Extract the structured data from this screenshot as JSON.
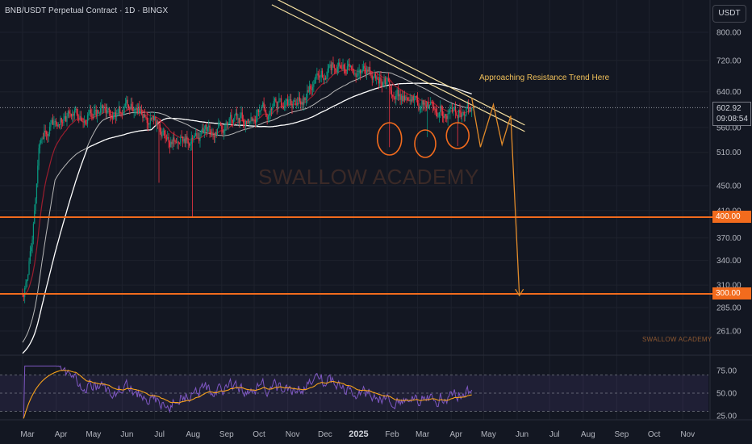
{
  "header": {
    "title": "BNB/USDT Perpetual Contract · 1D · BINGX",
    "currency_button": "USDT"
  },
  "price_panel": {
    "current_price": "602.92",
    "countdown": "09:08:54",
    "level_400_label": "400.00",
    "level_300_label": "300.00"
  },
  "annotations": {
    "resistance_text": "Approaching Resistance Trend Here",
    "watermark_main": "SWALLOW ACADEMY",
    "watermark_small": "SWALLOW ACADEMY"
  },
  "colors": {
    "background": "#131722",
    "grid": "#1e222d",
    "candle_up": "#089981",
    "candle_down": "#f23645",
    "ema_fast": "#9b1d2e",
    "sma_mid": "#b8b8b8",
    "sma_slow": "#ffffff",
    "trendline": "#f5e0a0",
    "horizontal_levels": "#f26b1d",
    "projection": "#e08a2a",
    "rsi_line": "#7e57c2",
    "rsi_ma": "#f7a21b"
  },
  "chart_data": [
    {
      "type": "candlestick",
      "title": "BNB/USDT Perpetual Contract · 1D · BINGX",
      "y_scale": "log",
      "ylim": [
        232,
        835
      ],
      "y_ticks": [
        800,
        720,
        640,
        602.92,
        560,
        510,
        450,
        410,
        400,
        370,
        340,
        310,
        300,
        285,
        261
      ],
      "y_tick_labels": [
        "800.00",
        "720.00",
        "640.00",
        "602.92",
        "560.00",
        "510.00",
        "450.00",
        "410.00",
        "400.00",
        "370.00",
        "340.00",
        "310.00",
        "300.00",
        "285.00",
        "261.00"
      ],
      "x_ticks": [
        "Mar",
        "Apr",
        "May",
        "Jun",
        "Jul",
        "Aug",
        "Sep",
        "Oct",
        "Nov",
        "Dec",
        "2025",
        "Feb",
        "Mar",
        "Apr",
        "May",
        "Jun",
        "Jul",
        "Aug",
        "Sep",
        "Oct",
        "Nov"
      ],
      "price_path_monthly": {
        "x": [
          "2024-03",
          "2024-04",
          "2024-05",
          "2024-06",
          "2024-07",
          "2024-08",
          "2024-09",
          "2024-10",
          "2024-11",
          "2024-12",
          "2025-01",
          "2025-02",
          "2025-03",
          "2025-04"
        ],
        "close": [
          555,
          590,
          595,
          600,
          530,
          555,
          575,
          600,
          630,
          720,
          690,
          620,
          600,
          600
        ]
      },
      "current_price": 602.92,
      "horizontal_levels": [
        400,
        300
      ],
      "trendline": {
        "from": {
          "x": "2024-12-01",
          "y": 810
        },
        "to": {
          "x": "2025-06-08",
          "y": 565
        }
      },
      "projection_path": [
        {
          "x": "2025-04-20",
          "y": 625
        },
        {
          "x": "2025-04-28",
          "y": 520
        },
        {
          "x": "2025-05-10",
          "y": 610
        },
        {
          "x": "2025-05-18",
          "y": 525
        },
        {
          "x": "2025-05-26",
          "y": 585
        },
        {
          "x": "2025-06-03",
          "y": 298
        }
      ],
      "marked_lows": [
        "2025-02-03",
        "2025-03-08",
        "2025-04-07"
      ],
      "annotation": "Approaching Resistance Trend Here"
    },
    {
      "type": "line",
      "name": "RSI panel",
      "ylim": [
        20,
        80
      ],
      "y_ticks": [
        75,
        50,
        25
      ],
      "y_tick_labels": [
        "75.00",
        "50.00",
        "25.00"
      ],
      "bands": [
        30,
        70
      ],
      "last_value": 52
    }
  ]
}
